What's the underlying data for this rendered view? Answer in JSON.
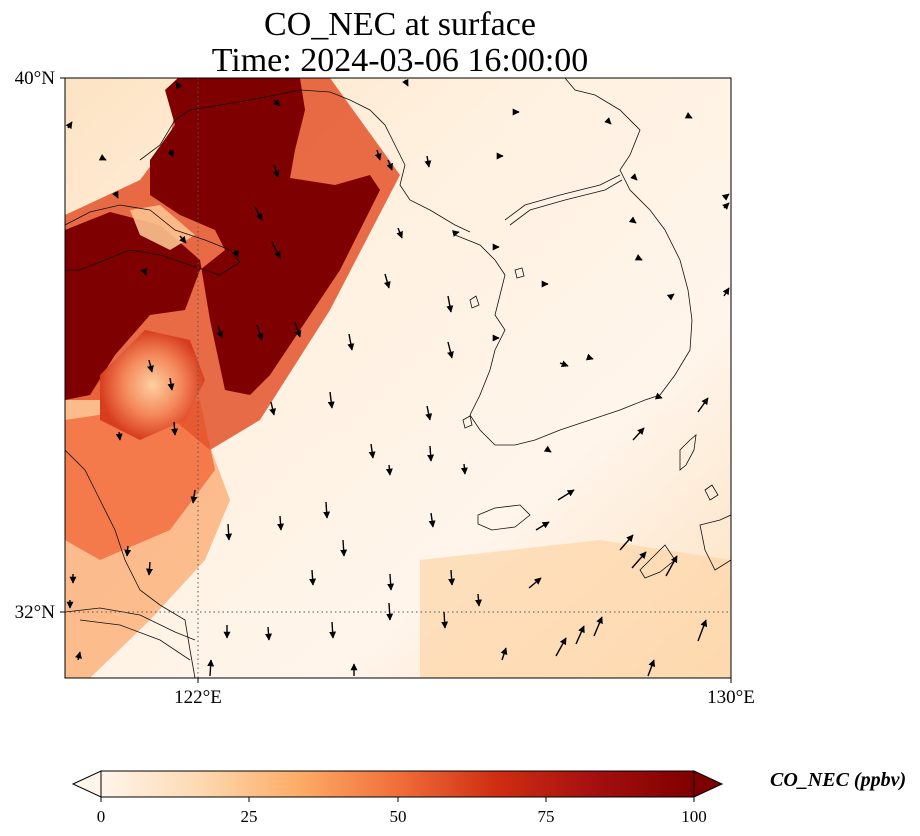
{
  "title": {
    "line1": "CO_NEC at surface",
    "line2": "Time: 2024-03-06 16:00:00"
  },
  "map": {
    "lat_labels": [
      "40°N",
      "32°N"
    ],
    "lon_labels": [
      "122°E",
      "130°E"
    ],
    "lon_range": [
      120,
      130
    ],
    "lat_range": [
      31,
      40
    ],
    "gridlines": "dotted",
    "field": "CO_NEC",
    "vectors": "wind arrows"
  },
  "colorbar": {
    "label": "CO_NEC (ppbv)",
    "ticks": [
      "0",
      "25",
      "50",
      "75",
      "100"
    ],
    "min": 0,
    "max": 100,
    "extend": "both",
    "colors": [
      "#fff5eb",
      "#fdd9b1",
      "#fdac67",
      "#f16e3b",
      "#cf2e10",
      "#a50f0f",
      "#7f0000"
    ]
  }
}
